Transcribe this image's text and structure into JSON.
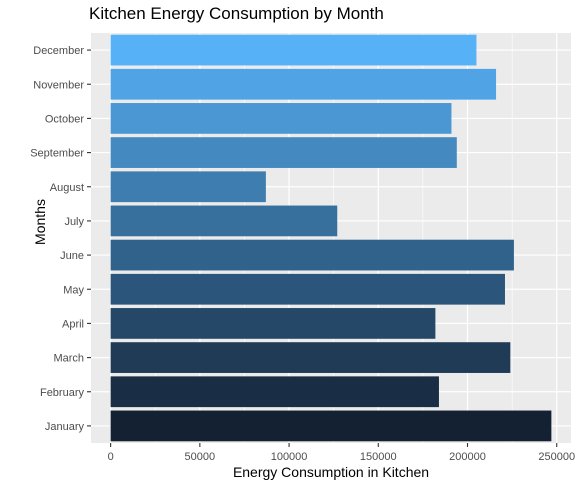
{
  "chart_data": {
    "type": "bar",
    "orientation": "horizontal",
    "title": "Kitchen Energy Consumption by Month",
    "xlabel": "Energy Consumption in Kitchen",
    "ylabel": "Months",
    "categories": [
      "January",
      "February",
      "March",
      "April",
      "May",
      "June",
      "July",
      "August",
      "September",
      "October",
      "November",
      "December"
    ],
    "values": [
      247000,
      184000,
      224000,
      182000,
      221000,
      226000,
      127000,
      87000,
      194000,
      191000,
      216000,
      205000
    ],
    "xlim": [
      -11000,
      258000
    ],
    "xticks": [
      0,
      50000,
      100000,
      150000,
      200000,
      250000
    ],
    "xtick_labels": [
      "0",
      "50000",
      "100000",
      "150000",
      "200000",
      "250000"
    ],
    "grid": true,
    "bar_color_start": "#132132",
    "bar_color_end": "#56B1F7",
    "panel_background": "#EBEBEB"
  }
}
